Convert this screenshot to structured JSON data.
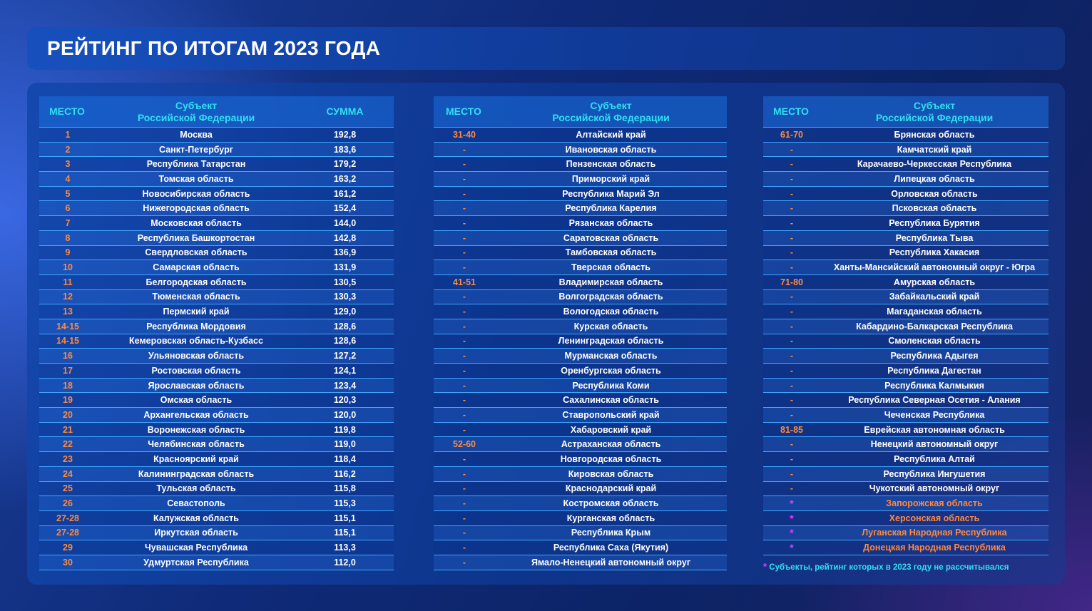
{
  "title": "РЕЙТИНГ ПО ИТОГАМ 2023 ГОДА",
  "headers": {
    "rank": "МЕСТО",
    "subject_line1": "Субъект",
    "subject_line2": "Российской Федерации",
    "sum": "СУММА"
  },
  "table1": [
    {
      "rank": "1",
      "subject": "Москва",
      "sum": "192,8"
    },
    {
      "rank": "2",
      "subject": "Санкт-Петербург",
      "sum": "183,6"
    },
    {
      "rank": "3",
      "subject": "Республика Татарстан",
      "sum": "179,2"
    },
    {
      "rank": "4",
      "subject": "Томская область",
      "sum": "163,2"
    },
    {
      "rank": "5",
      "subject": "Новосибирская область",
      "sum": "161,2"
    },
    {
      "rank": "6",
      "subject": "Нижегородская область",
      "sum": "152,4"
    },
    {
      "rank": "7",
      "subject": "Московская область",
      "sum": "144,0"
    },
    {
      "rank": "8",
      "subject": "Республика Башкортостан",
      "sum": "142,8"
    },
    {
      "rank": "9",
      "subject": "Свердловская область",
      "sum": "136,9"
    },
    {
      "rank": "10",
      "subject": "Самарская область",
      "sum": "131,9"
    },
    {
      "rank": "11",
      "subject": "Белгородская область",
      "sum": "130,5"
    },
    {
      "rank": "12",
      "subject": "Тюменская область",
      "sum": "130,3"
    },
    {
      "rank": "13",
      "subject": "Пермский край",
      "sum": "129,0"
    },
    {
      "rank": "14-15",
      "subject": "Республика Мордовия",
      "sum": "128,6"
    },
    {
      "rank": "14-15",
      "subject": "Кемеровская область-Кузбасс",
      "sum": "128,6"
    },
    {
      "rank": "16",
      "subject": "Ульяновская область",
      "sum": "127,2"
    },
    {
      "rank": "17",
      "subject": "Ростовская область",
      "sum": "124,1"
    },
    {
      "rank": "18",
      "subject": "Ярославская область",
      "sum": "123,4"
    },
    {
      "rank": "19",
      "subject": "Омская область",
      "sum": "120,3"
    },
    {
      "rank": "20",
      "subject": "Архангельская область",
      "sum": "120,0"
    },
    {
      "rank": "21",
      "subject": "Воронежская область",
      "sum": "119,8"
    },
    {
      "rank": "22",
      "subject": "Челябинская область",
      "sum": "119,0"
    },
    {
      "rank": "23",
      "subject": "Красноярский край",
      "sum": "118,4"
    },
    {
      "rank": "24",
      "subject": "Калининградская область",
      "sum": "116,2"
    },
    {
      "rank": "25",
      "subject": "Тульская область",
      "sum": "115,8"
    },
    {
      "rank": "26",
      "subject": "Севастополь",
      "sum": "115,3"
    },
    {
      "rank": "27-28",
      "subject": "Калужская область",
      "sum": "115,1"
    },
    {
      "rank": "27-28",
      "subject": "Иркутская область",
      "sum": "115,1"
    },
    {
      "rank": "29",
      "subject": "Чувашская Республика",
      "sum": "113,3"
    },
    {
      "rank": "30",
      "subject": "Удмуртская Республика",
      "sum": "112,0"
    }
  ],
  "table2": [
    {
      "rank": "31-40",
      "subject": "Алтайский край"
    },
    {
      "rank": "-",
      "subject": "Ивановская область"
    },
    {
      "rank": "-",
      "subject": "Пензенская область"
    },
    {
      "rank": "-",
      "subject": "Приморский край"
    },
    {
      "rank": "-",
      "subject": "Республика Марий Эл"
    },
    {
      "rank": "-",
      "subject": "Республика Карелия"
    },
    {
      "rank": "-",
      "subject": "Рязанская область"
    },
    {
      "rank": "-",
      "subject": "Саратовская область"
    },
    {
      "rank": "-",
      "subject": "Тамбовская область"
    },
    {
      "rank": "-",
      "subject": "Тверская область"
    },
    {
      "rank": "41-51",
      "subject": "Владимирская область"
    },
    {
      "rank": "-",
      "subject": "Волгоградская область"
    },
    {
      "rank": "-",
      "subject": "Вологодская область"
    },
    {
      "rank": "-",
      "subject": "Курская область"
    },
    {
      "rank": "-",
      "subject": "Ленинградская область"
    },
    {
      "rank": "-",
      "subject": "Мурманская область"
    },
    {
      "rank": "-",
      "subject": "Оренбургская область"
    },
    {
      "rank": "-",
      "subject": "Республика Коми"
    },
    {
      "rank": "-",
      "subject": "Сахалинская область"
    },
    {
      "rank": "-",
      "subject": "Ставропольский край"
    },
    {
      "rank": "-",
      "subject": "Хабаровский край"
    },
    {
      "rank": "52-60",
      "subject": "Астраханская область"
    },
    {
      "rank": "-",
      "subject": "Новгородская область"
    },
    {
      "rank": "-",
      "subject": "Кировская область"
    },
    {
      "rank": "-",
      "subject": "Краснодарский край"
    },
    {
      "rank": "-",
      "subject": "Костромская область"
    },
    {
      "rank": "-",
      "subject": "Курганская область"
    },
    {
      "rank": "-",
      "subject": "Республика Крым"
    },
    {
      "rank": "-",
      "subject": "Республика Саха (Якутия)"
    },
    {
      "rank": "-",
      "subject": "Ямало-Ненецкий автономный округ"
    }
  ],
  "table3": [
    {
      "rank": "61-70",
      "subject": "Брянская область"
    },
    {
      "rank": "-",
      "subject": "Камчатский край"
    },
    {
      "rank": "-",
      "subject": "Карачаево-Черкесская Республика"
    },
    {
      "rank": "-",
      "subject": "Липецкая область"
    },
    {
      "rank": "-",
      "subject": "Орловская область"
    },
    {
      "rank": "-",
      "subject": "Псковская область"
    },
    {
      "rank": "-",
      "subject": "Республика Бурятия"
    },
    {
      "rank": "-",
      "subject": "Республика Тыва"
    },
    {
      "rank": "-",
      "subject": "Республика Хакасия"
    },
    {
      "rank": "-",
      "subject": "Ханты-Мансийский автономный округ - Югра"
    },
    {
      "rank": "71-80",
      "subject": "Амурская область"
    },
    {
      "rank": "-",
      "subject": "Забайкальский край"
    },
    {
      "rank": "-",
      "subject": "Магаданская область"
    },
    {
      "rank": "-",
      "subject": "Кабардино-Балкарская Республика"
    },
    {
      "rank": "-",
      "subject": "Смоленская область"
    },
    {
      "rank": "-",
      "subject": "Республика Адыгея"
    },
    {
      "rank": "-",
      "subject": "Республика Дагестан"
    },
    {
      "rank": "-",
      "subject": "Республика Калмыкия"
    },
    {
      "rank": "-",
      "subject": "Республика Северная Осетия - Алания"
    },
    {
      "rank": "-",
      "subject": "Чеченская Республика"
    },
    {
      "rank": "81-85",
      "subject": "Еврейская автономная область"
    },
    {
      "rank": "-",
      "subject": "Ненецкий автономный округ"
    },
    {
      "rank": "-",
      "subject": "Республика Алтай"
    },
    {
      "rank": "-",
      "subject": "Республика Ингушетия"
    },
    {
      "rank": "-",
      "subject": "Чукотский автономный округ"
    },
    {
      "rank": "*",
      "subject": "Запорожская область",
      "unrated": true
    },
    {
      "rank": "*",
      "subject": "Херсонская область",
      "unrated": true
    },
    {
      "rank": "*",
      "subject": "Луганская Народная Республика",
      "unrated": true
    },
    {
      "rank": "*",
      "subject": "Донецкая Народная Республика",
      "unrated": true
    }
  ],
  "footnote": {
    "asterisk": "*",
    "text": "Субъекты, рейтинг которых в 2023 году не рассчитывался"
  },
  "colors": {
    "header_text": "#2fe0f2",
    "rank_text": "#ff8a3d",
    "asterisk": "#e040fb",
    "row_border": "#3ea7ff"
  }
}
